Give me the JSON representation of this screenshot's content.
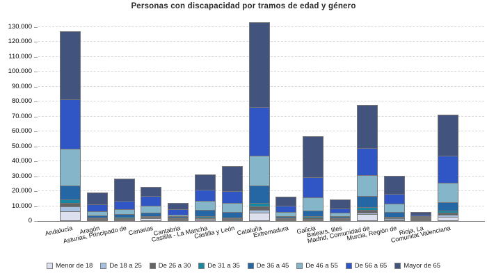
{
  "title": "Personas con discapacidad por tramos de edad y género",
  "chart_data": {
    "type": "bar",
    "stacked": true,
    "title": "Personas con discapacidad por tramos de edad y género",
    "xlabel": "",
    "ylabel": "",
    "ylim": [
      0,
      134000
    ],
    "grid": "horizontal-dashed",
    "legend_position": "bottom",
    "y_ticks": [
      "0",
      "10.000",
      "20.000",
      "30.000",
      "40.000",
      "50.000",
      "60.000",
      "70.000",
      "80.000",
      "90.000",
      "100.000",
      "110.000",
      "120.000",
      "130.000"
    ],
    "categories": [
      "Andalucía",
      "Aragón",
      "Asturias, Principado de",
      "Canarias",
      "Cantabria",
      "Castilla - La Mancha",
      "Castilla y León",
      "Cataluña",
      "Extremadura",
      "Galicia",
      "Balears, Illes",
      "Madrid, Comunidad de",
      "Murcia, Región de",
      "Rioja, La",
      "Comunitat Valenciana"
    ],
    "series": [
      {
        "name": "Menor de 18",
        "color": "#dcdfee",
        "values": [
          6000,
          400,
          400,
          1200,
          250,
          900,
          500,
          5250,
          300,
          600,
          300,
          4250,
          700,
          150,
          2200
        ]
      },
      {
        "name": "De 18 a 25",
        "color": "#a8c0e0",
        "values": [
          3450,
          350,
          400,
          500,
          200,
          700,
          300,
          1850,
          200,
          550,
          250,
          750,
          500,
          100,
          1600
        ]
      },
      {
        "name": "De 26 a 30",
        "color": "#646464",
        "values": [
          2050,
          350,
          500,
          350,
          200,
          500,
          400,
          2050,
          250,
          800,
          250,
          1850,
          400,
          100,
          1200
        ]
      },
      {
        "name": "De 31 a 35",
        "color": "#1787a2",
        "values": [
          2300,
          400,
          700,
          350,
          250,
          600,
          450,
          2350,
          300,
          750,
          300,
          1850,
          600,
          150,
          1500
        ]
      },
      {
        "name": "De 36 a 45",
        "color": "#2467a4",
        "values": [
          9300,
          1500,
          1950,
          2600,
          800,
          4200,
          3700,
          11600,
          1100,
          3900,
          1100,
          7450,
          3400,
          350,
          5750
        ]
      },
      {
        "name": "De 46 a 55",
        "color": "#85b5c9",
        "values": [
          24800,
          2800,
          3400,
          4700,
          950,
          6200,
          6200,
          20150,
          2500,
          9000,
          2050,
          14200,
          5550,
          550,
          12850
        ]
      },
      {
        "name": "De 56 a 65",
        "color": "#3056c6",
        "values": [
          33000,
          4350,
          5450,
          6200,
          3850,
          7450,
          7900,
          32550,
          4400,
          13200,
          3100,
          18000,
          6500,
          700,
          18150
        ]
      },
      {
        "name": "Mayor de 65",
        "color": "#42547e",
        "values": [
          45600,
          7950,
          15000,
          6100,
          4300,
          10050,
          16600,
          56700,
          5750,
          27600,
          5750,
          29000,
          12100,
          2100,
          27600
        ]
      }
    ],
    "totals": [
      126500,
      18100,
      27800,
      22000,
      10800,
      30600,
      36050,
      132500,
      14800,
      56400,
      13100,
      77350,
      29750,
      4200,
      70850
    ]
  }
}
